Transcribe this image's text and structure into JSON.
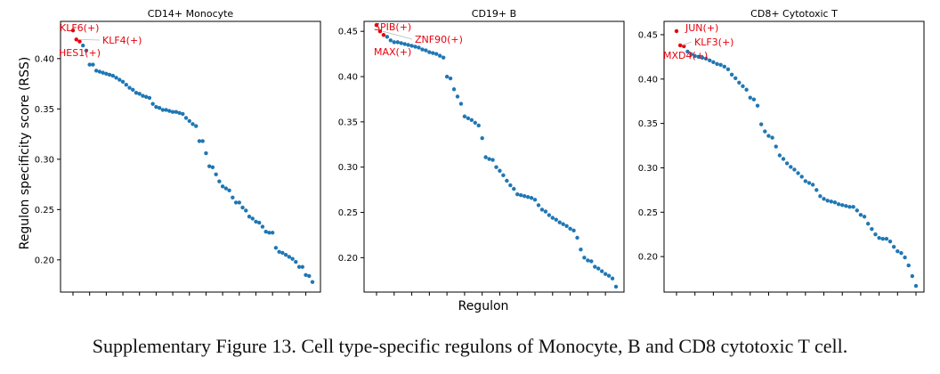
{
  "figure": {
    "ylabel": "Regulon specificity score (RSS)",
    "xlabel": "Regulon",
    "caption": "Supplementary Figure 13. Cell type-specific regulons of Monocyte, B and CD8 cytotoxic T cell.",
    "colors": {
      "point": "#1f77b4",
      "highlight": "#e8000b",
      "label": "#e8000b",
      "leader": "#bbbbbb",
      "axis": "#000000"
    }
  },
  "chart_data": [
    {
      "type": "scatter",
      "title": "CD14+ Monocyte",
      "xlabel": "",
      "ylabel": "Regulon specificity score (RSS)",
      "ylim": [
        0.168,
        0.437
      ],
      "yticks": [
        0.2,
        0.25,
        0.3,
        0.35,
        0.4
      ],
      "ytick_labels": [
        "0.20",
        "0.25",
        "0.30",
        "0.35",
        "0.40"
      ],
      "highlighted": [
        {
          "rank": 1,
          "label": "KLF6(+)",
          "value": 0.428
        },
        {
          "rank": 2,
          "label": "KLF4(+)",
          "value": 0.419
        },
        {
          "rank": 3,
          "label": "HES1(+)",
          "value": 0.417
        }
      ],
      "values": [
        0.428,
        0.419,
        0.417,
        0.413,
        0.408,
        0.394,
        0.394,
        0.388,
        0.387,
        0.386,
        0.385,
        0.384,
        0.383,
        0.381,
        0.379,
        0.377,
        0.374,
        0.371,
        0.369,
        0.366,
        0.365,
        0.363,
        0.362,
        0.361,
        0.355,
        0.352,
        0.351,
        0.349,
        0.349,
        0.348,
        0.347,
        0.347,
        0.346,
        0.345,
        0.341,
        0.338,
        0.335,
        0.333,
        0.318,
        0.318,
        0.306,
        0.293,
        0.292,
        0.285,
        0.278,
        0.273,
        0.271,
        0.269,
        0.262,
        0.257,
        0.257,
        0.252,
        0.249,
        0.243,
        0.241,
        0.238,
        0.237,
        0.233,
        0.228,
        0.227,
        0.227,
        0.212,
        0.208,
        0.207,
        0.205,
        0.203,
        0.201,
        0.198,
        0.193,
        0.193,
        0.185,
        0.184,
        0.178
      ]
    },
    {
      "type": "scatter",
      "title": "CD19+ B",
      "xlabel": "Regulon",
      "ylabel": "",
      "ylim": [
        0.162,
        0.461
      ],
      "yticks": [
        0.2,
        0.25,
        0.3,
        0.35,
        0.4,
        0.45
      ],
      "ytick_labels": [
        "0.20",
        "0.25",
        "0.30",
        "0.35",
        "0.40",
        "0.45"
      ],
      "highlighted": [
        {
          "rank": 1,
          "label": "SPIB(+)",
          "value": 0.457
        },
        {
          "rank": 2,
          "label": "ZNF90(+)",
          "value": 0.45
        },
        {
          "rank": 3,
          "label": "MAX(+)",
          "value": 0.446
        }
      ],
      "values": [
        0.457,
        0.45,
        0.446,
        0.444,
        0.44,
        0.438,
        0.438,
        0.437,
        0.436,
        0.435,
        0.434,
        0.433,
        0.432,
        0.43,
        0.429,
        0.427,
        0.426,
        0.425,
        0.423,
        0.421,
        0.4,
        0.398,
        0.386,
        0.378,
        0.37,
        0.356,
        0.354,
        0.352,
        0.349,
        0.346,
        0.332,
        0.311,
        0.309,
        0.308,
        0.3,
        0.296,
        0.291,
        0.285,
        0.28,
        0.276,
        0.27,
        0.269,
        0.268,
        0.267,
        0.266,
        0.264,
        0.258,
        0.253,
        0.251,
        0.247,
        0.244,
        0.242,
        0.239,
        0.237,
        0.235,
        0.232,
        0.23,
        0.222,
        0.209,
        0.2,
        0.197,
        0.196,
        0.19,
        0.188,
        0.185,
        0.182,
        0.18,
        0.177,
        0.168
      ]
    },
    {
      "type": "scatter",
      "title": "CD8+ Cytotoxic T",
      "xlabel": "",
      "ylabel": "",
      "ylim": [
        0.16,
        0.465
      ],
      "yticks": [
        0.2,
        0.25,
        0.3,
        0.35,
        0.4,
        0.45
      ],
      "ytick_labels": [
        "0.20",
        "0.25",
        "0.30",
        "0.35",
        "0.40",
        "0.45"
      ],
      "highlighted": [
        {
          "rank": 1,
          "label": "JUN(+)",
          "value": 0.454
        },
        {
          "rank": 2,
          "label": "KLF3(+)",
          "value": 0.438
        },
        {
          "rank": 3,
          "label": "MXD4(+)",
          "value": 0.437
        }
      ],
      "values": [
        0.454,
        0.438,
        0.437,
        0.431,
        0.428,
        0.426,
        0.425,
        0.424,
        0.423,
        0.421,
        0.419,
        0.417,
        0.416,
        0.414,
        0.411,
        0.405,
        0.401,
        0.396,
        0.392,
        0.388,
        0.379,
        0.377,
        0.37,
        0.349,
        0.341,
        0.336,
        0.334,
        0.324,
        0.314,
        0.31,
        0.305,
        0.301,
        0.298,
        0.294,
        0.29,
        0.285,
        0.283,
        0.281,
        0.275,
        0.268,
        0.265,
        0.263,
        0.262,
        0.261,
        0.259,
        0.258,
        0.257,
        0.256,
        0.256,
        0.252,
        0.247,
        0.245,
        0.237,
        0.231,
        0.225,
        0.221,
        0.22,
        0.22,
        0.217,
        0.211,
        0.206,
        0.204,
        0.199,
        0.19,
        0.178,
        0.167
      ]
    }
  ]
}
